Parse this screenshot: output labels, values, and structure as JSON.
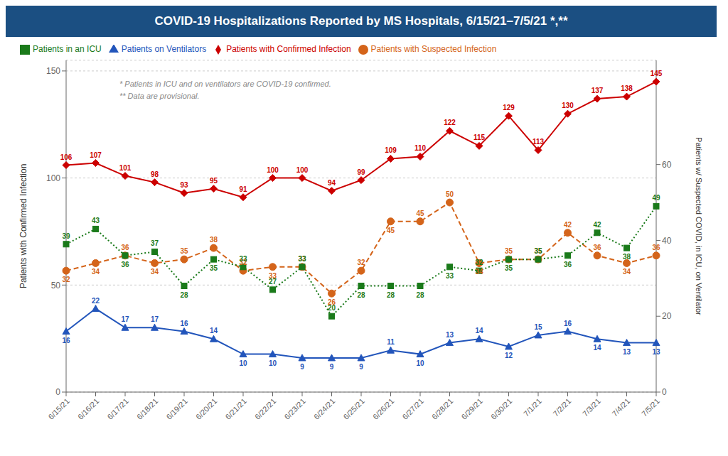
{
  "chart_data": {
    "type": "line",
    "title": "COVID-19 Hospitalizations Reported by MS Hospitals, 6/15/21–7/5/21 *,**",
    "ylabel": "Patients with Confirmed Infection",
    "y2label": "Patients w/ Suspected COVID, in ICU, on Ventilator",
    "categories": [
      "6/15/21",
      "6/16/21",
      "6/17/21",
      "6/18/21",
      "6/19/21",
      "6/20/21",
      "6/21/21",
      "6/22/21",
      "6/23/21",
      "6/24/21",
      "6/25/21",
      "6/26/21",
      "6/27/21",
      "6/28/21",
      "6/29/21",
      "6/30/21",
      "7/1/21",
      "7/2/21",
      "7/3/21",
      "7/4/21",
      "7/5/21"
    ],
    "series": [
      {
        "name": "Patients with Confirmed Infection",
        "color": "#cc0000",
        "marker": "diamond",
        "line_style": "solid",
        "axis": "y",
        "values": [
          106,
          107,
          101,
          98,
          93,
          95,
          91,
          100,
          100,
          94,
          99,
          109,
          110,
          122,
          115,
          129,
          113,
          130,
          137,
          138,
          145
        ]
      },
      {
        "name": "Patients with Suspected Infection",
        "color": "#d4641a",
        "marker": "circle",
        "line_style": "dashed",
        "axis": "y2",
        "values": [
          32,
          34,
          36,
          34,
          35,
          38,
          32,
          33,
          33,
          26,
          32,
          45,
          45,
          50,
          34,
          35,
          35,
          42,
          36,
          34,
          36
        ]
      },
      {
        "name": "Patients in an ICU",
        "color": "#1a7a1a",
        "marker": "square",
        "line_style": "dotted",
        "axis": "y2",
        "values": [
          39,
          43,
          36,
          37,
          28,
          35,
          33,
          27,
          33,
          20,
          28,
          28,
          28,
          33,
          32,
          35,
          35,
          36,
          42,
          38,
          49
        ]
      },
      {
        "name": "Patients on Ventilators",
        "color": "#2255bb",
        "marker": "triangle",
        "line_style": "solid",
        "axis": "y2",
        "values": [
          16,
          22,
          17,
          17,
          16,
          14,
          10,
          10,
          9,
          9,
          9,
          11,
          10,
          13,
          14,
          12,
          15,
          16,
          14,
          13,
          13
        ]
      }
    ],
    "ylim": [
      0,
      155
    ],
    "yticks": [
      0,
      50,
      100,
      150
    ],
    "y2lim": [
      0,
      87.5
    ],
    "y2ticks": [
      0,
      20,
      40,
      60
    ],
    "grid": true,
    "legend": "top",
    "data_labels": true,
    "annotations": [
      "* Patients in ICU and on ventilators are COVID-19 confirmed.",
      "** Data are provisional."
    ]
  }
}
